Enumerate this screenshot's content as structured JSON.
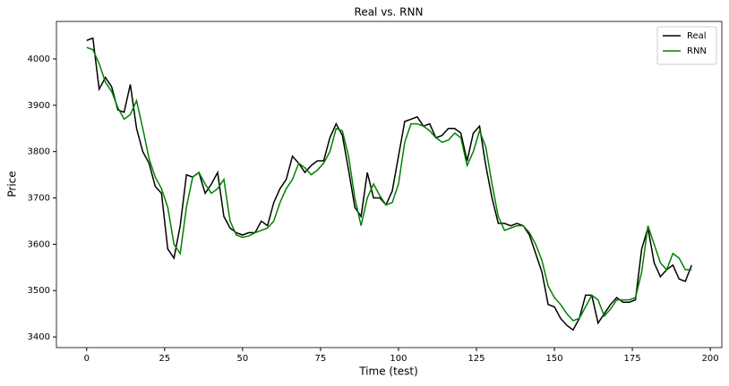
{
  "chart_data": {
    "type": "line",
    "title": "Real vs. RNN",
    "x_label": "Time (test)",
    "y_label": "Price",
    "x": [
      0,
      2,
      4,
      6,
      8,
      10,
      12,
      14,
      16,
      18,
      20,
      22,
      24,
      26,
      28,
      30,
      32,
      34,
      36,
      38,
      40,
      42,
      44,
      46,
      48,
      50,
      52,
      54,
      56,
      58,
      60,
      62,
      64,
      66,
      68,
      70,
      72,
      74,
      76,
      78,
      80,
      82,
      84,
      86,
      88,
      90,
      92,
      94,
      96,
      98,
      100,
      102,
      104,
      106,
      108,
      110,
      112,
      114,
      116,
      118,
      120,
      122,
      124,
      126,
      128,
      130,
      132,
      134,
      136,
      138,
      140,
      142,
      144,
      146,
      148,
      150,
      152,
      154,
      156,
      158,
      160,
      162,
      164,
      166,
      168,
      170,
      172,
      174,
      176,
      178,
      180,
      182,
      184,
      186,
      188,
      190,
      192,
      194
    ],
    "series": [
      {
        "name": "Real",
        "color": "#000000",
        "values": [
          4040,
          4045,
          3935,
          3960,
          3940,
          3890,
          3885,
          3945,
          3850,
          3800,
          3775,
          3725,
          3710,
          3590,
          3570,
          3640,
          3750,
          3745,
          3755,
          3710,
          3730,
          3755,
          3660,
          3635,
          3625,
          3620,
          3625,
          3625,
          3650,
          3640,
          3690,
          3720,
          3740,
          3790,
          3775,
          3755,
          3770,
          3780,
          3780,
          3830,
          3860,
          3835,
          3760,
          3680,
          3660,
          3755,
          3700,
          3700,
          3685,
          3715,
          3790,
          3865,
          3870,
          3875,
          3855,
          3860,
          3830,
          3835,
          3850,
          3850,
          3840,
          3780,
          3840,
          3855,
          3770,
          3700,
          3645,
          3645,
          3640,
          3645,
          3640,
          3620,
          3580,
          3540,
          3470,
          3465,
          3440,
          3425,
          3415,
          3440,
          3490,
          3490,
          3430,
          3450,
          3470,
          3485,
          3475,
          3475,
          3480,
          3590,
          3635,
          3560,
          3530,
          3545,
          3555,
          3525,
          3520,
          3555
        ]
      },
      {
        "name": "RNN",
        "color": "#008000",
        "values": [
          4025,
          4020,
          3990,
          3950,
          3930,
          3895,
          3870,
          3880,
          3910,
          3850,
          3785,
          3745,
          3720,
          3680,
          3600,
          3580,
          3680,
          3745,
          3755,
          3730,
          3710,
          3720,
          3740,
          3650,
          3620,
          3615,
          3618,
          3625,
          3630,
          3635,
          3650,
          3690,
          3720,
          3740,
          3775,
          3765,
          3750,
          3760,
          3775,
          3800,
          3850,
          3845,
          3790,
          3700,
          3640,
          3700,
          3730,
          3705,
          3685,
          3690,
          3730,
          3820,
          3860,
          3860,
          3855,
          3845,
          3830,
          3820,
          3825,
          3840,
          3830,
          3770,
          3800,
          3845,
          3810,
          3730,
          3660,
          3630,
          3635,
          3640,
          3640,
          3625,
          3600,
          3565,
          3510,
          3485,
          3470,
          3450,
          3435,
          3440,
          3465,
          3490,
          3480,
          3445,
          3460,
          3480,
          3480,
          3480,
          3485,
          3540,
          3640,
          3600,
          3560,
          3545,
          3580,
          3570,
          3545,
          3545
        ]
      }
    ],
    "xlim": [
      -9.7,
      203.7
    ],
    "ylim": [
      3377,
      4081
    ],
    "xticks": [
      0,
      25,
      50,
      75,
      100,
      125,
      150,
      175,
      200
    ],
    "yticks": [
      3400,
      3500,
      3600,
      3700,
      3800,
      3900,
      4000
    ],
    "legend": "upper right",
    "grid": false
  }
}
